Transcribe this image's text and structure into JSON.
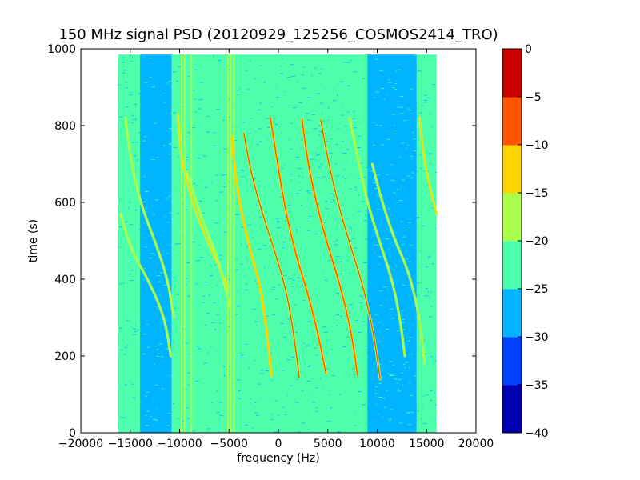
{
  "chart_data": {
    "type": "heatmap",
    "title": "150 MHz signal PSD (20120929_125256_COSMOS2414_TRO)",
    "xlabel": "frequency (Hz)",
    "ylabel": "time (s)",
    "xlim": [
      -20000,
      20000
    ],
    "ylim": [
      0,
      1000
    ],
    "xticks": [
      -20000,
      -15000,
      -10000,
      -5000,
      0,
      5000,
      10000,
      15000,
      20000
    ],
    "xtick_labels": [
      "−20000",
      "−15000",
      "−10000",
      "−5000",
      "0",
      "5000",
      "10000",
      "15000",
      "20000"
    ],
    "yticks": [
      0,
      200,
      400,
      600,
      800,
      1000
    ],
    "ytick_labels": [
      "0",
      "200",
      "400",
      "600",
      "800",
      "1000"
    ],
    "data_extent": {
      "x": [
        -16200,
        16000
      ],
      "y": [
        0,
        985
      ]
    },
    "colorbar": {
      "levels": [
        -40,
        -35,
        -30,
        -25,
        -20,
        -15,
        -10,
        -5,
        0
      ],
      "tick_labels": [
        "−40",
        "−35",
        "−30",
        "−25",
        "−20",
        "−15",
        "−10",
        "−5",
        "0"
      ],
      "colors": [
        "#0000b0",
        "#0040ff",
        "#00b4ff",
        "#4dffaa",
        "#aaff4d",
        "#ffd200",
        "#ff5500",
        "#c80000"
      ]
    },
    "background_regions": [
      {
        "x": [
          -16200,
          -14000
        ],
        "level": -22
      },
      {
        "x": [
          -14000,
          -10800
        ],
        "level": -27
      },
      {
        "x": [
          -10800,
          -8500
        ],
        "level": -22
      },
      {
        "x": [
          -8500,
          -5800
        ],
        "level": -24
      },
      {
        "x": [
          -5800,
          8200
        ],
        "level": -22
      },
      {
        "x": [
          8200,
          9000
        ],
        "level": -24
      },
      {
        "x": [
          9000,
          14000
        ],
        "level": -27
      },
      {
        "x": [
          14000,
          16000
        ],
        "level": -24
      }
    ],
    "vertical_lines": [
      {
        "x": -9800,
        "y": [
          0,
          985
        ],
        "level": -18
      },
      {
        "x": -9500,
        "y": [
          0,
          985
        ],
        "level": -16
      },
      {
        "x": -8800,
        "y": [
          0,
          985
        ],
        "level": -18
      },
      {
        "x": -5100,
        "y": [
          0,
          985
        ],
        "level": -18
      },
      {
        "x": -4800,
        "y": [
          0,
          985
        ],
        "level": -17
      },
      {
        "x": -4500,
        "y": [
          0,
          985
        ],
        "level": -18
      }
    ],
    "tracks": [
      {
        "points": [
          [
            -4700,
            770
          ],
          [
            -4400,
            680
          ],
          [
            -3800,
            580
          ],
          [
            -2800,
            470
          ],
          [
            -1800,
            380
          ],
          [
            -1100,
            250
          ],
          [
            -700,
            150
          ]
        ],
        "level": -12
      },
      {
        "points": [
          [
            -3500,
            780
          ],
          [
            -2800,
            680
          ],
          [
            -1500,
            560
          ],
          [
            -200,
            460
          ],
          [
            900,
            360
          ],
          [
            1700,
            230
          ],
          [
            2100,
            145
          ]
        ],
        "level": -10
      },
      {
        "points": [
          [
            -800,
            820
          ],
          [
            -200,
            720
          ],
          [
            700,
            580
          ],
          [
            1800,
            460
          ],
          [
            2900,
            370
          ],
          [
            4000,
            260
          ],
          [
            4800,
            155
          ]
        ],
        "level": -8
      },
      {
        "points": [
          [
            2400,
            815
          ],
          [
            3000,
            700
          ],
          [
            4000,
            580
          ],
          [
            5200,
            470
          ],
          [
            6300,
            380
          ],
          [
            7400,
            260
          ],
          [
            8000,
            150
          ]
        ],
        "level": -8
      },
      {
        "points": [
          [
            4300,
            815
          ],
          [
            5000,
            710
          ],
          [
            6200,
            580
          ],
          [
            7500,
            470
          ],
          [
            8600,
            380
          ],
          [
            9700,
            250
          ],
          [
            10300,
            140
          ]
        ],
        "level": -10
      },
      {
        "points": [
          [
            -15500,
            820
          ],
          [
            -15000,
            720
          ],
          [
            -14000,
            600
          ],
          [
            -12500,
            500
          ],
          [
            -11200,
            400
          ],
          [
            -10600,
            300
          ]
        ],
        "level": -16
      },
      {
        "points": [
          [
            -16000,
            570
          ],
          [
            -14800,
            470
          ],
          [
            -13200,
            400
          ],
          [
            -11500,
            300
          ],
          [
            -10900,
            200
          ]
        ],
        "level": -16
      },
      {
        "points": [
          [
            -10200,
            830
          ],
          [
            -9800,
            700
          ],
          [
            -8200,
            560
          ],
          [
            -6500,
            460
          ],
          [
            -5100,
            380
          ]
        ],
        "level": -15
      },
      {
        "points": [
          [
            -9300,
            680
          ],
          [
            -7800,
            560
          ],
          [
            -6200,
            460
          ],
          [
            -4800,
            320
          ]
        ],
        "level": -17
      },
      {
        "points": [
          [
            7200,
            820
          ],
          [
            8000,
            720
          ],
          [
            9000,
            600
          ],
          [
            10200,
            500
          ],
          [
            11500,
            400
          ],
          [
            12300,
            300
          ],
          [
            12800,
            200
          ]
        ],
        "level": -17
      },
      {
        "points": [
          [
            9500,
            700
          ],
          [
            10500,
            600
          ],
          [
            11800,
            500
          ],
          [
            13200,
            420
          ],
          [
            14300,
            300
          ],
          [
            14800,
            180
          ]
        ],
        "level": -17
      },
      {
        "points": [
          [
            14300,
            820
          ],
          [
            14700,
            720
          ],
          [
            15300,
            640
          ],
          [
            16000,
            570
          ]
        ],
        "level": -15
      }
    ]
  }
}
